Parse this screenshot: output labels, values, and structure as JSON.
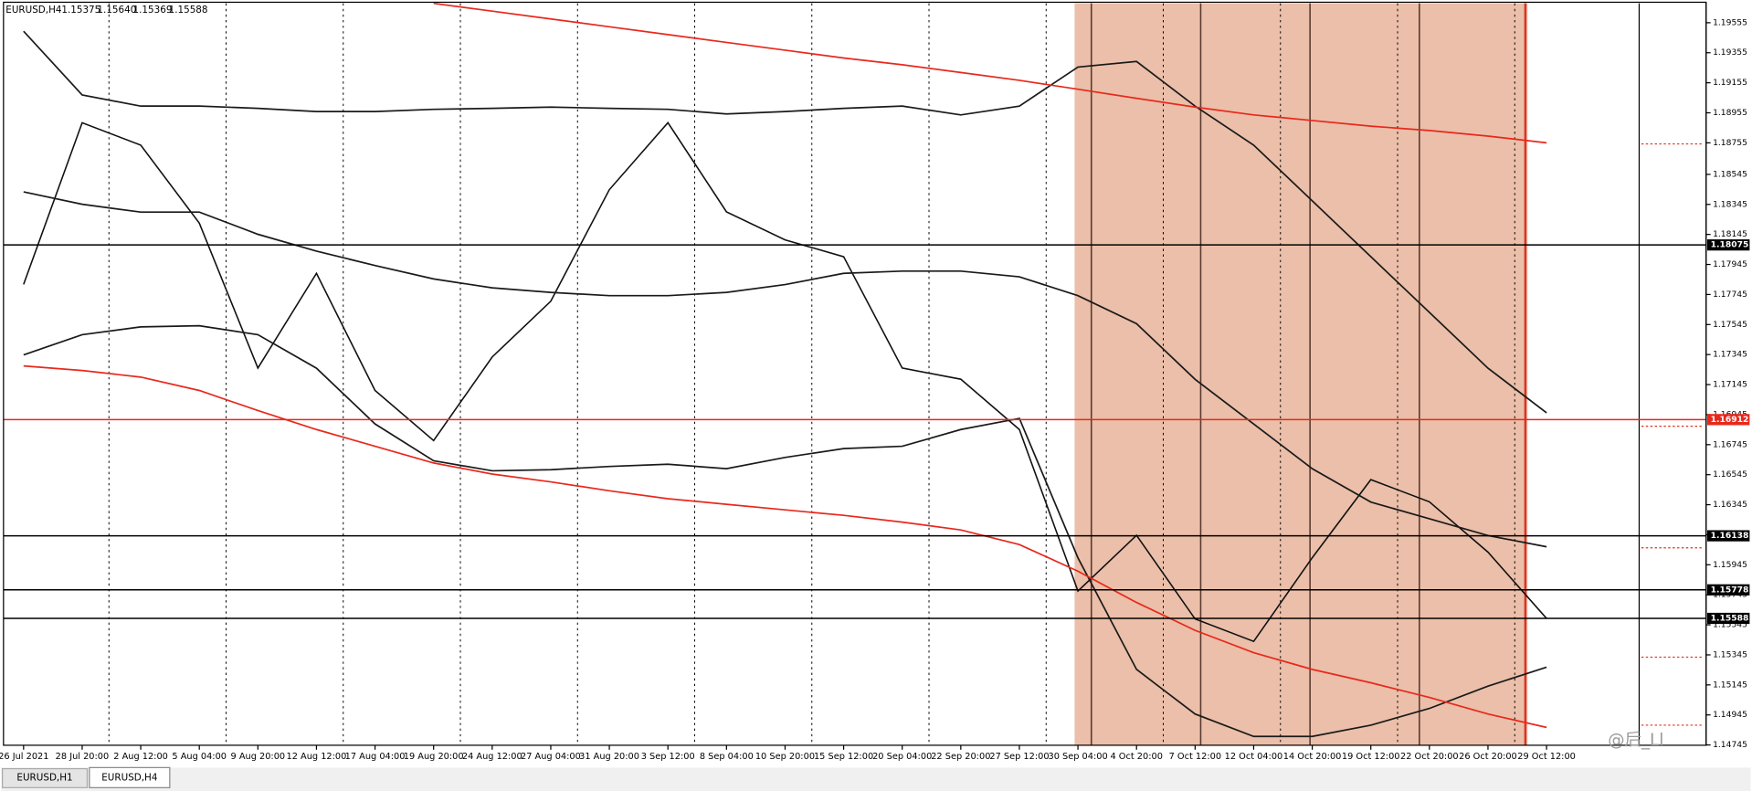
{
  "header": {
    "symbol": "EURUSD,H4",
    "ohlc": [
      "1.15375",
      "1.15640",
      "1.15369",
      "1.15588"
    ]
  },
  "tabs": [
    "EURUSD,H1",
    "EURUSD,H4"
  ],
  "watermark": "@后_Ll",
  "chart_data": {
    "type": "line",
    "categories": [
      "26 Jul 2021",
      "28 Jul 20:00",
      "2 Aug 12:00",
      "5 Aug 04:00",
      "9 Aug 20:00",
      "12 Aug 12:00",
      "17 Aug 04:00",
      "19 Aug 20:00",
      "24 Aug 12:00",
      "27 Aug 04:00",
      "31 Aug 20:00",
      "3 Sep 12:00",
      "8 Sep 04:00",
      "10 Sep 20:00",
      "15 Sep 12:00",
      "20 Sep 04:00",
      "22 Sep 20:00",
      "27 Sep 12:00",
      "30 Sep 04:00",
      "4 Oct 20:00",
      "7 Oct 12:00",
      "12 Oct 04:00",
      "14 Oct 20:00",
      "19 Oct 12:00",
      "22 Oct 20:00",
      "26 Oct 20:00",
      "29 Oct 12:00"
    ],
    "series": [
      {
        "color": "#111111",
        "values": [
          1.17812,
          1.18889,
          1.1874,
          1.1822,
          1.17255,
          1.17886,
          1.17106,
          1.16772,
          1.17329,
          1.177,
          1.18443,
          1.18889,
          1.18295,
          1.18109,
          1.17997,
          1.17255,
          1.17181,
          1.16846,
          1.1577,
          1.16141,
          1.15584,
          1.15435,
          1.15992,
          1.16512,
          1.16364,
          1.16029,
          1.15588
        ]
      },
      {
        "color": "#1a1a1a",
        "values": [
          1.19498,
          1.19074,
          1.19,
          1.19,
          1.18985,
          1.18963,
          1.18963,
          1.18978,
          1.18985,
          1.18993,
          1.18985,
          1.18978,
          1.18948,
          1.18963,
          1.18985,
          1.19,
          1.18941,
          1.19,
          1.1926,
          1.19297,
          1.19,
          1.1874,
          1.18369,
          1.17997,
          1.17626,
          1.17254,
          1.16957
        ]
      },
      {
        "color": "#1a1a1a",
        "values": [
          1.18428,
          1.18346,
          1.18294,
          1.18294,
          1.18146,
          1.18034,
          1.17938,
          1.17849,
          1.17789,
          1.17759,
          1.17737,
          1.17737,
          1.17759,
          1.17811,
          1.17886,
          1.17901,
          1.17901,
          1.17863,
          1.17737,
          1.17551,
          1.1718,
          1.16883,
          1.16585,
          1.16363,
          1.16251,
          1.1614,
          1.16065
        ]
      },
      {
        "color": "#1a1a1a",
        "values": [
          1.17343,
          1.17477,
          1.17529,
          1.17537,
          1.17477,
          1.17254,
          1.16883,
          1.16638,
          1.16571,
          1.16578,
          1.166,
          1.16615,
          1.16585,
          1.1666,
          1.16719,
          1.16734,
          1.16846,
          1.1692,
          1.15991,
          1.15248,
          1.14951,
          1.14802,
          1.14802,
          1.14877,
          1.14988,
          1.15137,
          1.15263
        ]
      },
      {
        "color": "#e8281c",
        "values": [
          1.17269,
          1.17239,
          1.17195,
          1.17106,
          1.16972,
          1.16846,
          1.16734,
          1.16623,
          1.16549,
          1.16497,
          1.16438,
          1.16385,
          1.16348,
          1.16311,
          1.16274,
          1.16229,
          1.16177,
          1.1608,
          1.15902,
          1.15694,
          1.15508,
          1.1536,
          1.15248,
          1.15159,
          1.15062,
          1.14951,
          1.14862
        ]
      },
      {
        "color": "#e8281c",
        "values": [
          null,
          null,
          null,
          null,
          null,
          null,
          null,
          1.19684,
          1.19632,
          1.1958,
          1.19528,
          1.19476,
          1.19424,
          1.19372,
          1.1932,
          1.19275,
          1.19223,
          1.19171,
          1.19112,
          1.19052,
          1.18993,
          1.18941,
          1.18904,
          1.18866,
          1.18837,
          1.188,
          1.18755
        ]
      }
    ],
    "levels": [
      {
        "value": 1.18075,
        "color": "#000000"
      },
      {
        "value": 1.16912,
        "color": "#e8281c"
      },
      {
        "value": 1.16138,
        "color": "#000000"
      },
      {
        "value": 1.15778,
        "color": "#000000"
      },
      {
        "value": 1.15588,
        "color": "#000000"
      }
    ],
    "ylim": [
      1.14743,
      1.19684
    ],
    "yticks": [
      1.14745,
      1.14945,
      1.15145,
      1.15345,
      1.15545,
      1.15745,
      1.15945,
      1.16145,
      1.16345,
      1.16545,
      1.16745,
      1.16945,
      1.17145,
      1.17345,
      1.17545,
      1.17745,
      1.17945,
      1.18145,
      1.18345,
      1.18545,
      1.18755,
      1.18955,
      1.19155,
      1.19355,
      1.19555
    ]
  }
}
